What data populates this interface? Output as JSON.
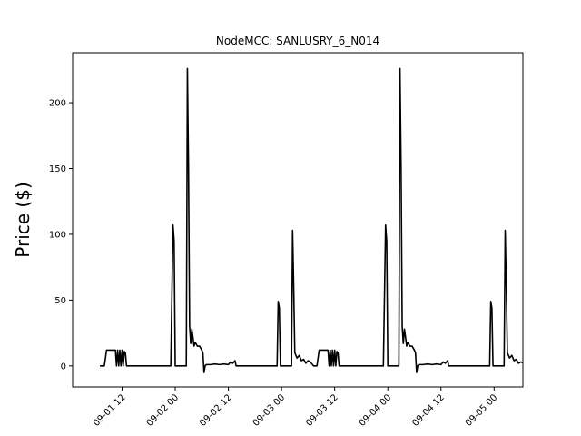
{
  "chart_data": {
    "type": "line",
    "title": "NodeMCC: SANLUSRY_6_N014",
    "xlabel": "",
    "ylabel": "Price ($)",
    "x_unit": "datetime",
    "xlim": [
      "2024-09-01 00:50",
      "2024-09-05 06:30"
    ],
    "ylim": [
      -16,
      238
    ],
    "yticks": [
      0,
      50,
      100,
      150,
      200
    ],
    "xticks": [
      {
        "t": "2024-09-01 12:00",
        "label": "09-01 12"
      },
      {
        "t": "2024-09-02 00:00",
        "label": "09-02 00"
      },
      {
        "t": "2024-09-02 12:00",
        "label": "09-02 12"
      },
      {
        "t": "2024-09-03 00:00",
        "label": "09-03 00"
      },
      {
        "t": "2024-09-03 12:00",
        "label": "09-03 12"
      },
      {
        "t": "2024-09-04 00:00",
        "label": "09-04 00"
      },
      {
        "t": "2024-09-04 12:00",
        "label": "09-04 12"
      },
      {
        "t": "2024-09-05 00:00",
        "label": "09-05 00"
      }
    ],
    "grid": false,
    "line_color": "#000000",
    "series": [
      {
        "points": [
          [
            "2024-09-01 07:00",
            0
          ],
          [
            "2024-09-01 08:00",
            0
          ],
          [
            "2024-09-01 08:30",
            12
          ],
          [
            "2024-09-01 10:30",
            12
          ],
          [
            "2024-09-01 10:45",
            0
          ],
          [
            "2024-09-01 11:00",
            12
          ],
          [
            "2024-09-01 11:15",
            0
          ],
          [
            "2024-09-01 11:30",
            12
          ],
          [
            "2024-09-01 11:45",
            0
          ],
          [
            "2024-09-01 12:00",
            12
          ],
          [
            "2024-09-01 12:15",
            0
          ],
          [
            "2024-09-01 12:30",
            11
          ],
          [
            "2024-09-01 12:45",
            10
          ],
          [
            "2024-09-01 13:00",
            0
          ],
          [
            "2024-09-01 23:00",
            0
          ],
          [
            "2024-09-01 23:30",
            107
          ],
          [
            "2024-09-01 23:45",
            95
          ],
          [
            "2024-09-02 00:00",
            0
          ],
          [
            "2024-09-02 02:30",
            0
          ],
          [
            "2024-09-02 02:45",
            226
          ],
          [
            "2024-09-02 03:00",
            150
          ],
          [
            "2024-09-02 03:15",
            30
          ],
          [
            "2024-09-02 03:30",
            17
          ],
          [
            "2024-09-02 03:45",
            28
          ],
          [
            "2024-09-02 04:00",
            22
          ],
          [
            "2024-09-02 04:15",
            15
          ],
          [
            "2024-09-02 04:30",
            18
          ],
          [
            "2024-09-02 05:00",
            15
          ],
          [
            "2024-09-02 05:30",
            15
          ],
          [
            "2024-09-02 06:00",
            12
          ],
          [
            "2024-09-02 06:15",
            10
          ],
          [
            "2024-09-02 06:30",
            -5
          ],
          [
            "2024-09-02 06:45",
            0
          ],
          [
            "2024-09-02 07:00",
            1
          ],
          [
            "2024-09-02 08:00",
            1
          ],
          [
            "2024-09-02 09:00",
            1.5
          ],
          [
            "2024-09-02 10:00",
            1
          ],
          [
            "2024-09-02 11:00",
            1.5
          ],
          [
            "2024-09-02 12:00",
            1
          ],
          [
            "2024-09-02 12:30",
            3
          ],
          [
            "2024-09-02 13:00",
            2
          ],
          [
            "2024-09-02 13:30",
            4
          ],
          [
            "2024-09-02 13:45",
            0
          ],
          [
            "2024-09-02 23:00",
            0
          ],
          [
            "2024-09-02 23:15",
            49
          ],
          [
            "2024-09-02 23:30",
            44
          ],
          [
            "2024-09-02 23:45",
            0
          ],
          [
            "2024-09-03 02:15",
            0
          ],
          [
            "2024-09-03 02:30",
            103
          ],
          [
            "2024-09-03 02:45",
            60
          ],
          [
            "2024-09-03 03:00",
            10
          ],
          [
            "2024-09-03 03:30",
            6
          ],
          [
            "2024-09-03 04:00",
            8
          ],
          [
            "2024-09-03 04:30",
            4
          ],
          [
            "2024-09-03 05:00",
            5
          ],
          [
            "2024-09-03 05:30",
            2
          ],
          [
            "2024-09-03 06:00",
            4
          ],
          [
            "2024-09-03 06:30",
            3
          ],
          [
            "2024-09-03 07:00",
            1
          ],
          [
            "2024-09-03 07:15",
            0
          ],
          [
            "2024-09-03 08:00",
            0
          ],
          [
            "2024-09-03 08:30",
            12
          ],
          [
            "2024-09-03 10:30",
            12
          ],
          [
            "2024-09-03 10:45",
            0
          ],
          [
            "2024-09-03 11:00",
            12
          ],
          [
            "2024-09-03 11:15",
            0
          ],
          [
            "2024-09-03 11:30",
            12
          ],
          [
            "2024-09-03 11:45",
            0
          ],
          [
            "2024-09-03 12:00",
            12
          ],
          [
            "2024-09-03 12:15",
            0
          ],
          [
            "2024-09-03 12:30",
            11
          ],
          [
            "2024-09-03 12:45",
            10
          ],
          [
            "2024-09-03 13:00",
            0
          ],
          [
            "2024-09-03 23:00",
            0
          ],
          [
            "2024-09-03 23:30",
            107
          ],
          [
            "2024-09-03 23:45",
            95
          ],
          [
            "2024-09-04 00:00",
            0
          ],
          [
            "2024-09-04 02:30",
            0
          ],
          [
            "2024-09-04 02:45",
            226
          ],
          [
            "2024-09-04 03:00",
            150
          ],
          [
            "2024-09-04 03:15",
            30
          ],
          [
            "2024-09-04 03:30",
            17
          ],
          [
            "2024-09-04 03:45",
            28
          ],
          [
            "2024-09-04 04:00",
            22
          ],
          [
            "2024-09-04 04:15",
            15
          ],
          [
            "2024-09-04 04:30",
            18
          ],
          [
            "2024-09-04 05:00",
            15
          ],
          [
            "2024-09-04 05:30",
            15
          ],
          [
            "2024-09-04 06:00",
            12
          ],
          [
            "2024-09-04 06:15",
            10
          ],
          [
            "2024-09-04 06:30",
            -5
          ],
          [
            "2024-09-04 06:45",
            0
          ],
          [
            "2024-09-04 07:00",
            1
          ],
          [
            "2024-09-04 08:00",
            1
          ],
          [
            "2024-09-04 09:00",
            1.5
          ],
          [
            "2024-09-04 10:00",
            1
          ],
          [
            "2024-09-04 11:00",
            1.5
          ],
          [
            "2024-09-04 12:00",
            1
          ],
          [
            "2024-09-04 12:30",
            3
          ],
          [
            "2024-09-04 13:00",
            2
          ],
          [
            "2024-09-04 13:30",
            4
          ],
          [
            "2024-09-04 13:45",
            0
          ],
          [
            "2024-09-04 23:00",
            0
          ],
          [
            "2024-09-04 23:15",
            49
          ],
          [
            "2024-09-04 23:30",
            44
          ],
          [
            "2024-09-04 23:45",
            0
          ],
          [
            "2024-09-05 02:15",
            0
          ],
          [
            "2024-09-05 02:30",
            103
          ],
          [
            "2024-09-05 02:45",
            60
          ],
          [
            "2024-09-05 03:00",
            10
          ],
          [
            "2024-09-05 03:30",
            6
          ],
          [
            "2024-09-05 04:00",
            8
          ],
          [
            "2024-09-05 04:30",
            4
          ],
          [
            "2024-09-05 05:00",
            5
          ],
          [
            "2024-09-05 05:30",
            2
          ],
          [
            "2024-09-05 06:00",
            3
          ],
          [
            "2024-09-05 06:30",
            2.5
          ]
        ]
      }
    ]
  }
}
